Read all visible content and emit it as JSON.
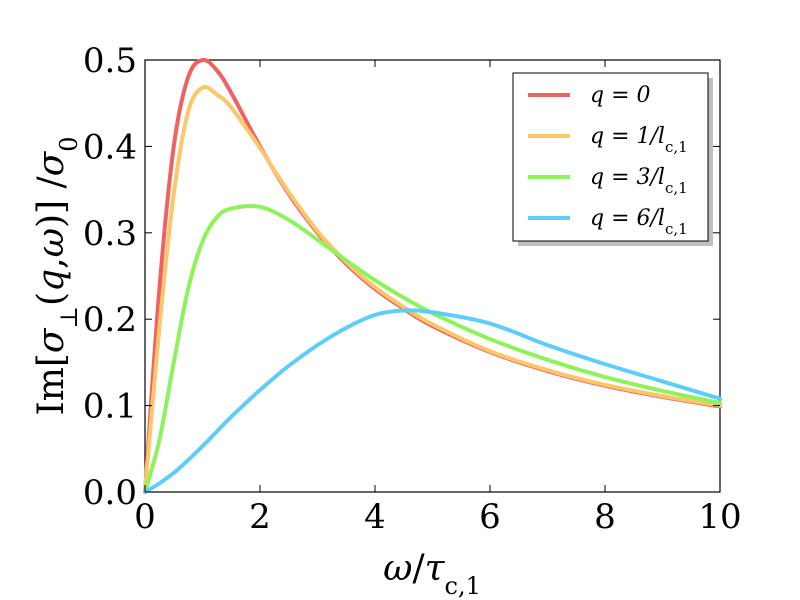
{
  "chart_data": {
    "type": "line",
    "xlabel": "ω/τ_{c,1}",
    "ylabel": "Im[σ⊥(q,ω)]/σ₀",
    "xlim": [
      0,
      10
    ],
    "ylim": [
      0,
      0.5
    ],
    "xticks": [
      "0",
      "2",
      "4",
      "6",
      "8",
      "10"
    ],
    "yticks": [
      "0.0",
      "0.1",
      "0.2",
      "0.3",
      "0.4",
      "0.5"
    ],
    "legend_position": "top-right",
    "grid": false,
    "x": [
      0,
      0.25,
      0.5,
      0.75,
      1,
      1.25,
      1.5,
      2,
      2.5,
      3,
      3.5,
      4,
      4.5,
      5,
      6,
      7,
      8,
      9,
      10
    ],
    "series": [
      {
        "name": "q = 0",
        "color": "#f06262",
        "values": [
          0,
          0.235,
          0.4,
          0.48,
          0.5,
          0.488,
          0.462,
          0.4,
          0.345,
          0.3,
          0.264,
          0.235,
          0.212,
          0.192,
          0.162,
          0.14,
          0.123,
          0.11,
          0.099
        ]
      },
      {
        "name": "q = 1/l_{c,1}",
        "color": "#fcc76a",
        "values": [
          0,
          0.19,
          0.345,
          0.44,
          0.468,
          0.46,
          0.445,
          0.398,
          0.347,
          0.302,
          0.266,
          0.237,
          0.214,
          0.194,
          0.163,
          0.141,
          0.124,
          0.111,
          0.1
        ]
      },
      {
        "name": "q = 3/l_{c,1}",
        "color": "#8ef25a",
        "values": [
          0,
          0.06,
          0.15,
          0.235,
          0.29,
          0.318,
          0.328,
          0.33,
          0.315,
          0.292,
          0.268,
          0.245,
          0.225,
          0.207,
          0.177,
          0.153,
          0.133,
          0.117,
          0.103
        ]
      },
      {
        "name": "q = 6/l_{c,1}",
        "color": "#5ecdfa",
        "values": [
          0,
          0.01,
          0.022,
          0.037,
          0.053,
          0.07,
          0.087,
          0.118,
          0.146,
          0.17,
          0.19,
          0.205,
          0.21,
          0.208,
          0.195,
          0.17,
          0.148,
          0.128,
          0.108
        ]
      }
    ]
  }
}
